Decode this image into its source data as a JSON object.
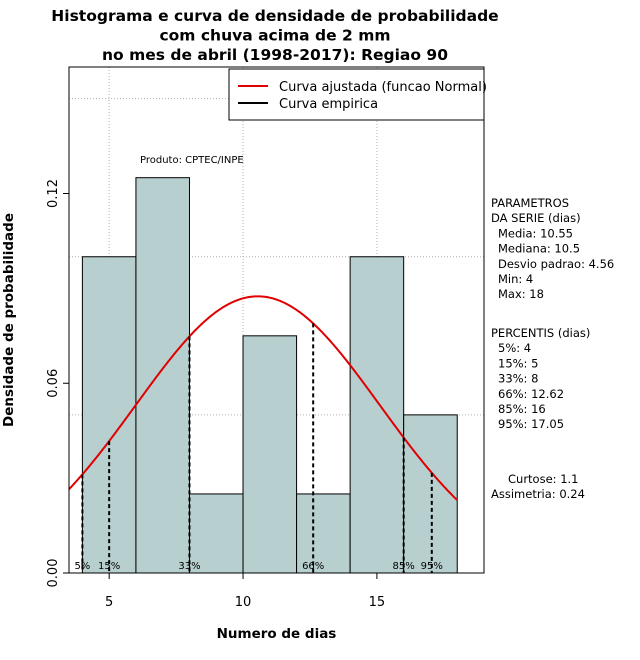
{
  "chart_data": {
    "type": "histogram",
    "title_lines": [
      "Histograma e curva de densidade de probabilidade",
      "com chuva acima de 2 mm",
      "no mes de abril (1998-2017): Regiao 90"
    ],
    "xlabel": "Numero de dias",
    "ylabel": "Densidade de probabilidade",
    "xlim": [
      3.5,
      19
    ],
    "ylim": [
      0,
      0.16
    ],
    "x_ticks": [
      5,
      10,
      15
    ],
    "x_tick_labels": [
      "5",
      "10",
      "15"
    ],
    "y_ticks": [
      0.0,
      0.06,
      0.12
    ],
    "y_tick_labels": [
      "0.00",
      "0.06",
      "0.12"
    ],
    "gridlines_x": [
      5,
      10,
      15
    ],
    "gridlines_y": [
      0.05,
      0.1,
      0.15
    ],
    "bins": [
      {
        "start": 4,
        "end": 6,
        "density": 0.1
      },
      {
        "start": 6,
        "end": 8,
        "density": 0.125
      },
      {
        "start": 8,
        "end": 10,
        "density": 0.025
      },
      {
        "start": 10,
        "end": 12,
        "density": 0.075
      },
      {
        "start": 12,
        "end": 14,
        "density": 0.025
      },
      {
        "start": 14,
        "end": 16,
        "density": 0.1
      },
      {
        "start": 16,
        "end": 18,
        "density": 0.05
      }
    ],
    "bar_color": "#b8cfcf",
    "normal_curve": {
      "mean": 10.55,
      "sd": 4.56,
      "color": "#e00000"
    },
    "legend": [
      {
        "label": "Curva ajustada (funcao Normal)",
        "color": "#e00000"
      },
      {
        "label": "Curva empirica",
        "color": "#000000"
      }
    ],
    "annotation": "Produto: CPTEC/INPE",
    "percentile_markers": [
      {
        "label": "5%",
        "value": 4
      },
      {
        "label": "15%",
        "value": 5
      },
      {
        "label": "33%",
        "value": 8
      },
      {
        "label": "66%",
        "value": 12.62
      },
      {
        "label": "85%",
        "value": 16
      },
      {
        "label": "95%",
        "value": 17.05
      }
    ],
    "parameters": {
      "heading_lines": [
        "PARAMETROS",
        "DA SERIE (dias)"
      ],
      "items": [
        "Media: 10.55",
        "Mediana: 10.5",
        "Desvio padrao: 4.56",
        "Min: 4",
        "Max: 18"
      ]
    },
    "percentiles_block": {
      "heading": "PERCENTIS (dias)",
      "items": [
        "5%: 4",
        "15%: 5",
        "33%: 8",
        "66%: 12.62",
        "85%: 16",
        "95%: 17.05"
      ]
    },
    "shape_stats": [
      "Curtose: 1.1",
      "Assimetria: 0.24"
    ]
  }
}
